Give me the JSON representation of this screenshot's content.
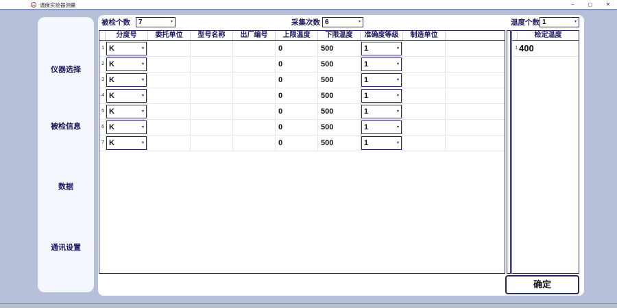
{
  "window": {
    "title": "温度实验器测量",
    "controls": {
      "minimize": "−",
      "maximize": "◻",
      "close": "✕"
    }
  },
  "icons": {
    "dropdown_arrow": "▾"
  },
  "colors": {
    "accent_navy": "#26266a",
    "window_background": "#b6c0d8",
    "sidebar_background": "#f4f7fd",
    "titlebar_line": "#8296c8",
    "app_icon_red": "#a04848"
  },
  "sidebar": {
    "items": [
      {
        "label": "仪器选择",
        "active": false
      },
      {
        "label": "被检信息",
        "active": true
      },
      {
        "label": "数据",
        "active": false
      },
      {
        "label": "通讯设置",
        "active": false
      }
    ]
  },
  "top_controls": {
    "checked_count": {
      "label": "被检个数",
      "value": "7"
    },
    "collect_times": {
      "label": "采集次数",
      "value": "6"
    },
    "temp_count": {
      "label": "温度个数",
      "value": "1"
    }
  },
  "table": {
    "columns": [
      "分度号",
      "委托单位",
      "型号名称",
      "出厂编号",
      "上限温度",
      "下限温度",
      "准确度等级",
      "制造单位"
    ],
    "rows": [
      {
        "index": "1",
        "graduation": "K",
        "client": "",
        "model": "",
        "serial": "",
        "upper": "0",
        "lower": "500",
        "accuracy": "1",
        "manufacturer": ""
      },
      {
        "index": "2",
        "graduation": "K",
        "client": "",
        "model": "",
        "serial": "",
        "upper": "0",
        "lower": "500",
        "accuracy": "1",
        "manufacturer": ""
      },
      {
        "index": "3",
        "graduation": "K",
        "client": "",
        "model": "",
        "serial": "",
        "upper": "0",
        "lower": "500",
        "accuracy": "1",
        "manufacturer": ""
      },
      {
        "index": "4",
        "graduation": "K",
        "client": "",
        "model": "",
        "serial": "",
        "upper": "0",
        "lower": "500",
        "accuracy": "1",
        "manufacturer": ""
      },
      {
        "index": "5",
        "graduation": "K",
        "client": "",
        "model": "",
        "serial": "",
        "upper": "0",
        "lower": "500",
        "accuracy": "1",
        "manufacturer": ""
      },
      {
        "index": "6",
        "graduation": "K",
        "client": "",
        "model": "",
        "serial": "",
        "upper": "0",
        "lower": "500",
        "accuracy": "1",
        "manufacturer": ""
      },
      {
        "index": "7",
        "graduation": "K",
        "client": "",
        "model": "",
        "serial": "",
        "upper": "0",
        "lower": "500",
        "accuracy": "1",
        "manufacturer": ""
      }
    ]
  },
  "temp_panel": {
    "header": "检定温度",
    "rows": [
      {
        "index": "1",
        "value": "400"
      }
    ]
  },
  "confirm_button": {
    "label": "确定"
  }
}
